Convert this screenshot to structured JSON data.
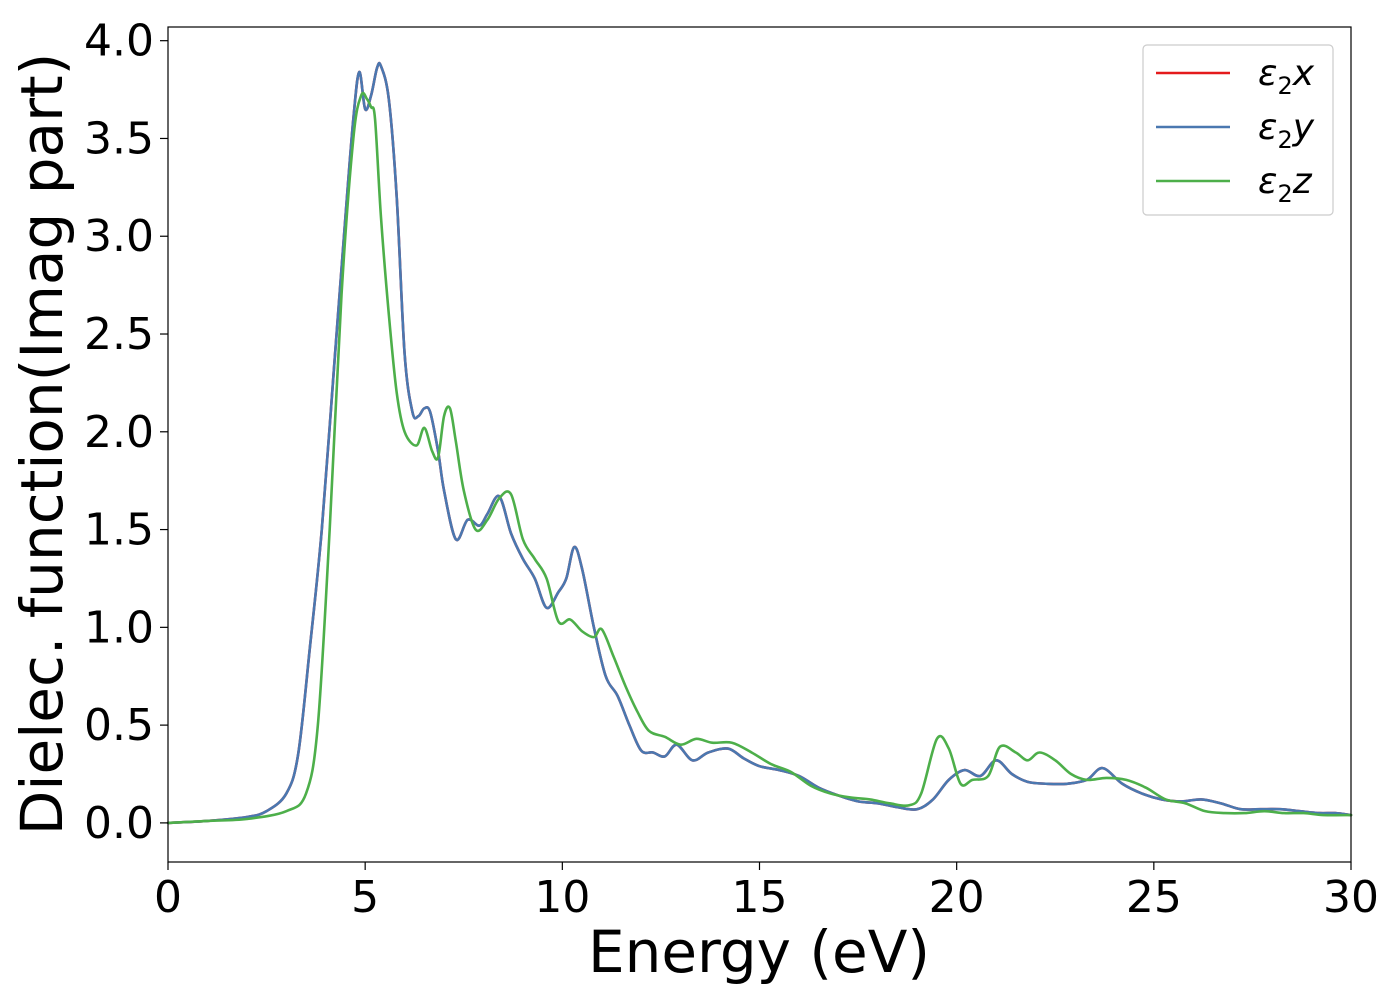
{
  "chart_data": {
    "type": "line",
    "xlabel": "Energy (eV)",
    "ylabel": "Dielec. function(Imag part)",
    "xlim": [
      0,
      30
    ],
    "ylim": [
      -0.2,
      4.07
    ],
    "x_ticks": [
      0,
      5,
      10,
      15,
      20,
      25,
      30
    ],
    "x_tick_labels": [
      "0",
      "5",
      "10",
      "15",
      "20",
      "25",
      "30"
    ],
    "y_ticks": [
      0.0,
      0.5,
      1.0,
      1.5,
      2.0,
      2.5,
      3.0,
      3.5,
      4.0
    ],
    "y_tick_labels": [
      "0.0",
      "0.5",
      "1.0",
      "1.5",
      "2.0",
      "2.5",
      "3.0",
      "3.5",
      "4.0"
    ],
    "grid": false,
    "legend_position": "top-right",
    "series": [
      {
        "name": "ε2x",
        "legend_base": "ε",
        "legend_sub": "2",
        "legend_var": "x",
        "color": "#e41a1c",
        "x": [
          0,
          1,
          2,
          2.5,
          3,
          3.3,
          3.6,
          3.9,
          4.2,
          4.5,
          4.7,
          4.85,
          5.0,
          5.15,
          5.3,
          5.4,
          5.6,
          5.8,
          6.0,
          6.2,
          6.35,
          6.5,
          6.65,
          6.85,
          7.0,
          7.3,
          7.6,
          7.9,
          8.1,
          8.4,
          8.7,
          9.0,
          9.3,
          9.6,
          9.9,
          10.1,
          10.3,
          10.5,
          10.8,
          11.1,
          11.4,
          11.7,
          12.0,
          12.3,
          12.6,
          12.9,
          13.3,
          13.7,
          14.2,
          14.6,
          15.0,
          15.5,
          16.0,
          16.5,
          17.0,
          17.5,
          18.0,
          18.5,
          19.0,
          19.4,
          19.8,
          20.2,
          20.6,
          21.0,
          21.4,
          21.8,
          22.3,
          22.8,
          23.3,
          23.7,
          24.2,
          24.7,
          25.2,
          25.7,
          26.2,
          26.7,
          27.2,
          27.7,
          28.2,
          28.7,
          29.2,
          29.6,
          30
        ],
        "y": [
          0.0,
          0.01,
          0.03,
          0.06,
          0.15,
          0.35,
          0.9,
          1.5,
          2.3,
          3.1,
          3.6,
          3.84,
          3.65,
          3.72,
          3.86,
          3.87,
          3.7,
          3.2,
          2.4,
          2.1,
          2.08,
          2.12,
          2.1,
          1.9,
          1.7,
          1.45,
          1.55,
          1.52,
          1.58,
          1.67,
          1.48,
          1.35,
          1.25,
          1.1,
          1.18,
          1.25,
          1.41,
          1.3,
          1.0,
          0.75,
          0.65,
          0.5,
          0.37,
          0.36,
          0.34,
          0.4,
          0.32,
          0.36,
          0.38,
          0.33,
          0.29,
          0.27,
          0.24,
          0.18,
          0.14,
          0.11,
          0.1,
          0.08,
          0.07,
          0.12,
          0.22,
          0.27,
          0.24,
          0.32,
          0.25,
          0.21,
          0.2,
          0.2,
          0.22,
          0.28,
          0.2,
          0.15,
          0.12,
          0.11,
          0.12,
          0.1,
          0.07,
          0.07,
          0.07,
          0.06,
          0.05,
          0.05,
          0.04
        ]
      },
      {
        "name": "ε2y",
        "legend_base": "ε",
        "legend_sub": "2",
        "legend_var": "y",
        "color": "#4a78b0",
        "x": [
          0,
          1,
          2,
          2.5,
          3,
          3.3,
          3.6,
          3.9,
          4.2,
          4.5,
          4.7,
          4.85,
          5.0,
          5.15,
          5.3,
          5.4,
          5.6,
          5.8,
          6.0,
          6.2,
          6.35,
          6.5,
          6.65,
          6.85,
          7.0,
          7.3,
          7.6,
          7.9,
          8.1,
          8.4,
          8.7,
          9.0,
          9.3,
          9.6,
          9.9,
          10.1,
          10.3,
          10.5,
          10.8,
          11.1,
          11.4,
          11.7,
          12.0,
          12.3,
          12.6,
          12.9,
          13.3,
          13.7,
          14.2,
          14.6,
          15.0,
          15.5,
          16.0,
          16.5,
          17.0,
          17.5,
          18.0,
          18.5,
          19.0,
          19.4,
          19.8,
          20.2,
          20.6,
          21.0,
          21.4,
          21.8,
          22.3,
          22.8,
          23.3,
          23.7,
          24.2,
          24.7,
          25.2,
          25.7,
          26.2,
          26.7,
          27.2,
          27.7,
          28.2,
          28.7,
          29.2,
          29.6,
          30
        ],
        "y": [
          0.0,
          0.01,
          0.03,
          0.06,
          0.15,
          0.35,
          0.9,
          1.5,
          2.3,
          3.1,
          3.6,
          3.84,
          3.65,
          3.72,
          3.86,
          3.87,
          3.7,
          3.2,
          2.4,
          2.1,
          2.08,
          2.12,
          2.1,
          1.9,
          1.7,
          1.45,
          1.55,
          1.52,
          1.58,
          1.67,
          1.48,
          1.35,
          1.25,
          1.1,
          1.18,
          1.25,
          1.41,
          1.3,
          1.0,
          0.75,
          0.65,
          0.5,
          0.37,
          0.36,
          0.34,
          0.4,
          0.32,
          0.36,
          0.38,
          0.33,
          0.29,
          0.27,
          0.24,
          0.18,
          0.14,
          0.11,
          0.1,
          0.08,
          0.07,
          0.12,
          0.22,
          0.27,
          0.24,
          0.32,
          0.25,
          0.21,
          0.2,
          0.2,
          0.22,
          0.28,
          0.2,
          0.15,
          0.12,
          0.11,
          0.12,
          0.1,
          0.07,
          0.07,
          0.07,
          0.06,
          0.05,
          0.05,
          0.04
        ]
      },
      {
        "name": "ε2z",
        "legend_base": "ε",
        "legend_sub": "2",
        "legend_var": "z",
        "color": "#4daf4a",
        "x": [
          0,
          1,
          2,
          3,
          3.5,
          3.8,
          4.1,
          4.4,
          4.7,
          4.9,
          5.05,
          5.15,
          5.25,
          5.4,
          5.6,
          5.8,
          6.0,
          6.3,
          6.5,
          6.7,
          6.85,
          7.0,
          7.15,
          7.3,
          7.5,
          7.8,
          8.1,
          8.4,
          8.7,
          9.0,
          9.3,
          9.6,
          9.9,
          10.2,
          10.5,
          10.8,
          11.0,
          11.3,
          11.6,
          11.9,
          12.2,
          12.6,
          13.0,
          13.4,
          13.8,
          14.3,
          14.8,
          15.3,
          15.8,
          16.3,
          16.8,
          17.3,
          17.8,
          18.3,
          18.8,
          19.1,
          19.5,
          19.8,
          20.1,
          20.4,
          20.8,
          21.1,
          21.5,
          21.8,
          22.1,
          22.5,
          22.9,
          23.3,
          23.8,
          24.3,
          24.8,
          25.3,
          25.8,
          26.3,
          26.8,
          27.3,
          27.8,
          28.3,
          28.8,
          29.3,
          30
        ],
        "y": [
          0.0,
          0.01,
          0.02,
          0.06,
          0.15,
          0.5,
          1.5,
          2.7,
          3.5,
          3.72,
          3.7,
          3.66,
          3.6,
          3.1,
          2.6,
          2.2,
          2.0,
          1.93,
          2.02,
          1.9,
          1.87,
          2.08,
          2.12,
          1.95,
          1.7,
          1.5,
          1.55,
          1.66,
          1.68,
          1.45,
          1.35,
          1.25,
          1.03,
          1.04,
          0.98,
          0.95,
          0.99,
          0.85,
          0.7,
          0.57,
          0.47,
          0.44,
          0.4,
          0.43,
          0.41,
          0.41,
          0.36,
          0.3,
          0.26,
          0.19,
          0.15,
          0.13,
          0.12,
          0.1,
          0.09,
          0.15,
          0.43,
          0.38,
          0.2,
          0.22,
          0.24,
          0.39,
          0.36,
          0.32,
          0.36,
          0.32,
          0.25,
          0.22,
          0.23,
          0.22,
          0.18,
          0.12,
          0.1,
          0.06,
          0.05,
          0.05,
          0.06,
          0.05,
          0.05,
          0.04,
          0.04
        ]
      }
    ]
  }
}
